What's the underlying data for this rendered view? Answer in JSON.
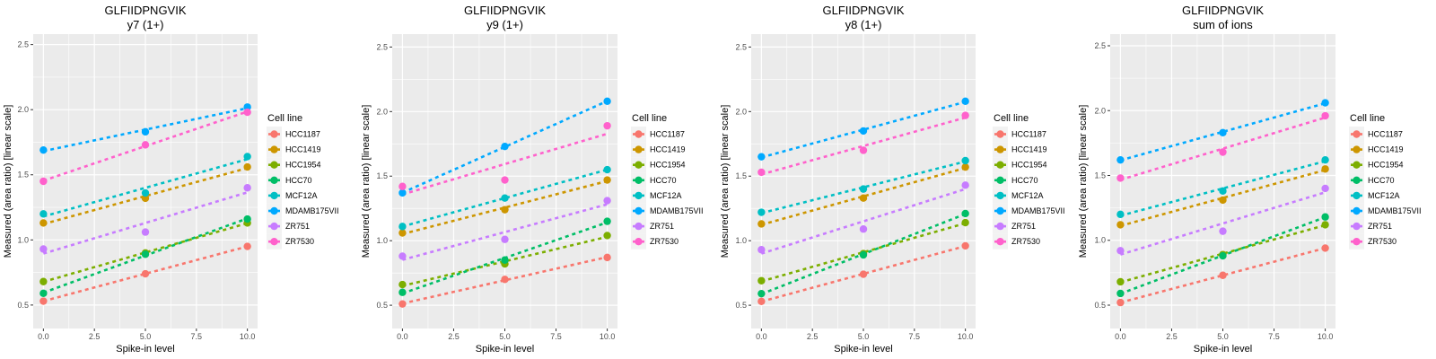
{
  "chart_data": [
    {
      "type": "scatter",
      "title": "GLFIIDPNGVIK",
      "subtitle": "y7 (1+)",
      "xlabel": "Spike-in level",
      "ylabel": "Measured (area ratio) [linear scale]",
      "x": [
        0,
        5,
        10
      ],
      "xticks": [
        "0.0",
        "2.5",
        "5.0",
        "7.5",
        "10.0"
      ],
      "yticks": [
        "0.5",
        "1.0",
        "1.5",
        "2.0",
        "2.5"
      ],
      "xlim": [
        -0.5,
        10.5
      ],
      "ylim": [
        0.32,
        2.58
      ],
      "grid": true,
      "fit": "linear regression, dashed",
      "legend": {
        "title": "Cell line",
        "position": "right"
      },
      "series": [
        {
          "name": "HCC1187",
          "color": "#F8766D",
          "values": [
            0.53,
            0.74,
            0.95
          ]
        },
        {
          "name": "HCC1419",
          "color": "#CD9600",
          "values": [
            1.13,
            1.32,
            1.56
          ]
        },
        {
          "name": "HCC1954",
          "color": "#7CAE00",
          "values": [
            0.68,
            0.9,
            1.13
          ]
        },
        {
          "name": "HCC70",
          "color": "#00BE67",
          "values": [
            0.59,
            0.89,
            1.16
          ]
        },
        {
          "name": "MCF12A",
          "color": "#00BFC4",
          "values": [
            1.2,
            1.36,
            1.64
          ]
        },
        {
          "name": "MDAMB175VII",
          "color": "#00A9FF",
          "values": [
            1.69,
            1.83,
            2.02
          ]
        },
        {
          "name": "ZR751",
          "color": "#C77CFF",
          "values": [
            0.93,
            1.06,
            1.4
          ]
        },
        {
          "name": "ZR7530",
          "color": "#FF61CC",
          "values": [
            1.45,
            1.73,
            1.98
          ]
        }
      ]
    },
    {
      "type": "scatter",
      "title": "GLFIIDPNGVIK",
      "subtitle": "y9 (1+)",
      "xlabel": "Spike-in level",
      "ylabel": "Measured (area ratio) [linear scale]",
      "x": [
        0,
        5,
        10
      ],
      "xticks": [
        "0.0",
        "2.5",
        "5.0",
        "7.5",
        "10.0"
      ],
      "yticks": [
        "0.5",
        "1.0",
        "1.5",
        "2.0",
        "2.5"
      ],
      "xlim": [
        -0.5,
        10.5
      ],
      "ylim": [
        0.32,
        2.6
      ],
      "grid": true,
      "fit": "linear regression, dashed",
      "legend": {
        "title": "Cell line",
        "position": "right"
      },
      "series": [
        {
          "name": "HCC1187",
          "color": "#F8766D",
          "values": [
            0.51,
            0.7,
            0.87
          ]
        },
        {
          "name": "HCC1419",
          "color": "#CD9600",
          "values": [
            1.06,
            1.24,
            1.47
          ]
        },
        {
          "name": "HCC1954",
          "color": "#7CAE00",
          "values": [
            0.66,
            0.82,
            1.04
          ]
        },
        {
          "name": "HCC70",
          "color": "#00BE67",
          "values": [
            0.6,
            0.85,
            1.15
          ]
        },
        {
          "name": "MCF12A",
          "color": "#00BFC4",
          "values": [
            1.11,
            1.33,
            1.55
          ]
        },
        {
          "name": "MDAMB175VII",
          "color": "#00A9FF",
          "values": [
            1.37,
            1.73,
            2.08
          ]
        },
        {
          "name": "ZR751",
          "color": "#C77CFF",
          "values": [
            0.88,
            1.01,
            1.31
          ]
        },
        {
          "name": "ZR7530",
          "color": "#FF61CC",
          "values": [
            1.42,
            1.47,
            1.89
          ]
        }
      ]
    },
    {
      "type": "scatter",
      "title": "GLFIIDPNGVIK",
      "subtitle": "y8 (1+)",
      "xlabel": "Spike-in level",
      "ylabel": "Measured (area ratio) [linear scale]",
      "x": [
        0,
        5,
        10
      ],
      "xticks": [
        "0.0",
        "2.5",
        "5.0",
        "7.5",
        "10.0"
      ],
      "yticks": [
        "0.5",
        "1.0",
        "1.5",
        "2.0",
        "2.5"
      ],
      "xlim": [
        -0.5,
        10.5
      ],
      "ylim": [
        0.32,
        2.6
      ],
      "grid": true,
      "fit": "linear regression, dashed",
      "legend": {
        "title": "Cell line",
        "position": "right"
      },
      "series": [
        {
          "name": "HCC1187",
          "color": "#F8766D",
          "values": [
            0.53,
            0.74,
            0.96
          ]
        },
        {
          "name": "HCC1419",
          "color": "#CD9600",
          "values": [
            1.13,
            1.33,
            1.57
          ]
        },
        {
          "name": "HCC1954",
          "color": "#7CAE00",
          "values": [
            0.69,
            0.9,
            1.14
          ]
        },
        {
          "name": "HCC70",
          "color": "#00BE67",
          "values": [
            0.59,
            0.89,
            1.21
          ]
        },
        {
          "name": "MCF12A",
          "color": "#00BFC4",
          "values": [
            1.22,
            1.4,
            1.62
          ]
        },
        {
          "name": "MDAMB175VII",
          "color": "#00A9FF",
          "values": [
            1.65,
            1.85,
            2.08
          ]
        },
        {
          "name": "ZR751",
          "color": "#C77CFF",
          "values": [
            0.93,
            1.09,
            1.43
          ]
        },
        {
          "name": "ZR7530",
          "color": "#FF61CC",
          "values": [
            1.53,
            1.7,
            1.97
          ]
        }
      ]
    },
    {
      "type": "scatter",
      "title": "GLFIIDPNGVIK",
      "subtitle": "sum of ions",
      "xlabel": "Spike-in level",
      "ylabel": "Measured (area ratio) [linear scale]",
      "x": [
        0,
        5,
        10
      ],
      "xticks": [
        "0.0",
        "2.5",
        "5.0",
        "7.5",
        "10.0"
      ],
      "yticks": [
        "0.5",
        "1.0",
        "1.5",
        "2.0",
        "2.5"
      ],
      "xlim": [
        -0.5,
        10.5
      ],
      "ylim": [
        0.32,
        2.59
      ],
      "grid": true,
      "fit": "linear regression, dashed",
      "legend": {
        "title": "Cell line",
        "position": "right"
      },
      "series": [
        {
          "name": "HCC1187",
          "color": "#F8766D",
          "values": [
            0.52,
            0.73,
            0.94
          ]
        },
        {
          "name": "HCC1419",
          "color": "#CD9600",
          "values": [
            1.12,
            1.31,
            1.55
          ]
        },
        {
          "name": "HCC1954",
          "color": "#7CAE00",
          "values": [
            0.68,
            0.89,
            1.12
          ]
        },
        {
          "name": "HCC70",
          "color": "#00BE67",
          "values": [
            0.59,
            0.88,
            1.18
          ]
        },
        {
          "name": "MCF12A",
          "color": "#00BFC4",
          "values": [
            1.2,
            1.38,
            1.62
          ]
        },
        {
          "name": "MDAMB175VII",
          "color": "#00A9FF",
          "values": [
            1.62,
            1.83,
            2.06
          ]
        },
        {
          "name": "ZR751",
          "color": "#C77CFF",
          "values": [
            0.92,
            1.07,
            1.4
          ]
        },
        {
          "name": "ZR7530",
          "color": "#FF61CC",
          "values": [
            1.48,
            1.68,
            1.96
          ]
        }
      ]
    }
  ]
}
